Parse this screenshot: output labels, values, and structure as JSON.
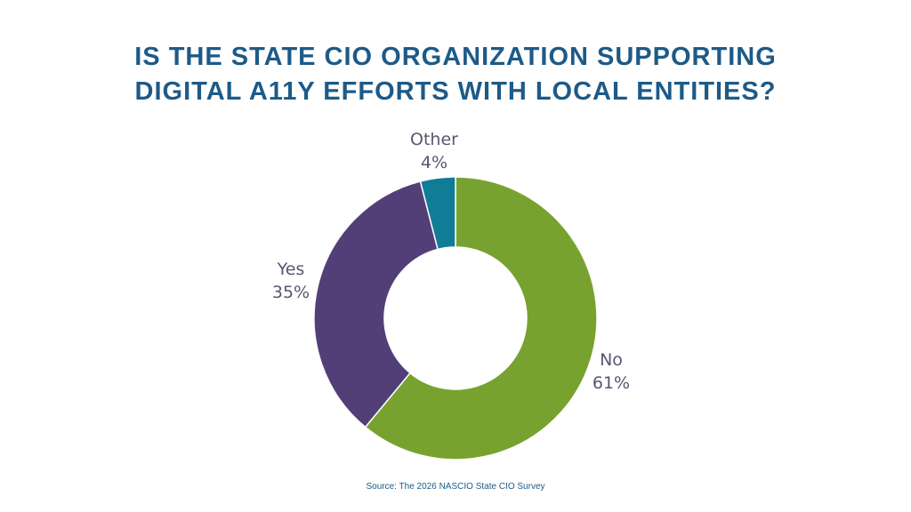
{
  "title_lines": [
    "IS THE STATE CIO ORGANIZATION SUPPORTING",
    "DIGITAL A11Y EFFORTS WITH LOCAL ENTITIES?"
  ],
  "source": "Source: The 2026 NASCIO State CIO Survey",
  "chart_data": {
    "type": "pie",
    "donut": true,
    "title": "IS THE STATE CIO ORGANIZATION SUPPORTING DIGITAL A11Y EFFORTS WITH LOCAL ENTITIES?",
    "slices": [
      {
        "label": "No",
        "value": 61,
        "value_label": "61%",
        "color": "#78a22f"
      },
      {
        "label": "Yes",
        "value": 35,
        "value_label": "35%",
        "color": "#533f77"
      },
      {
        "label": "Other",
        "value": 4,
        "value_label": "4%",
        "color": "#117c96"
      }
    ],
    "start": "top, clockwise",
    "legend": "none (direct labels)"
  }
}
